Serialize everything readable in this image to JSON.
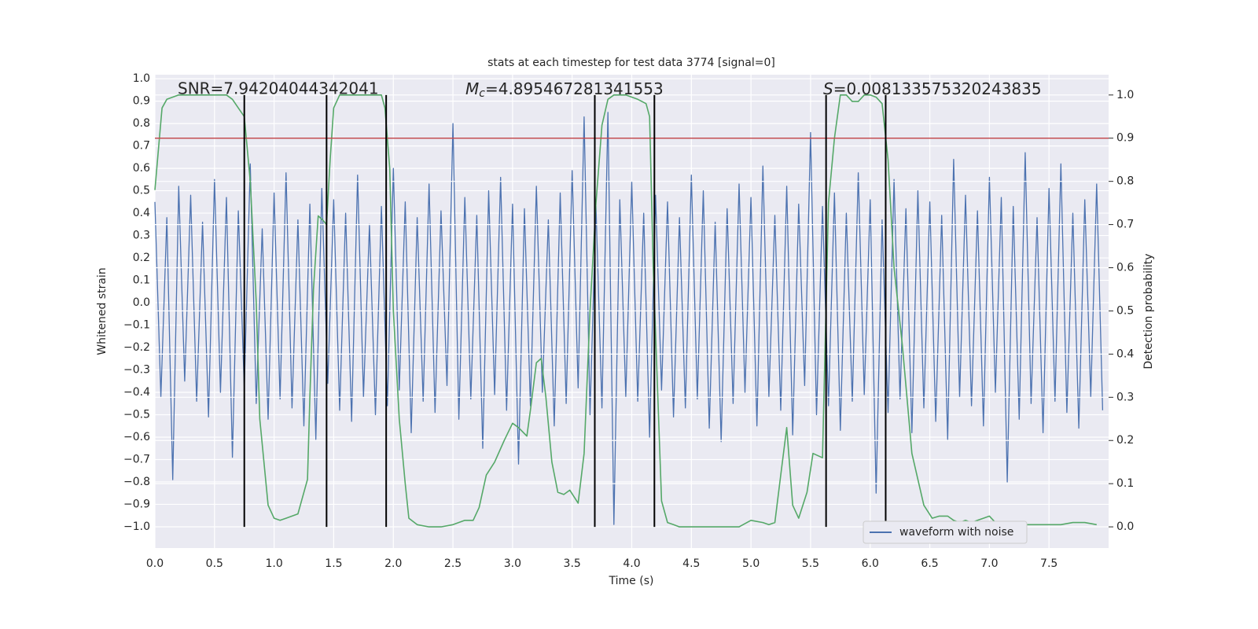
{
  "chart_data": {
    "type": "line",
    "title": "stats at each timestep for test data 3774 [signal=0]",
    "xlabel": "Time (s)",
    "ylabel": "Whitened strain",
    "y2label": "Detection probability",
    "annotations": [
      {
        "text": "SNR=7.94204044342041"
      },
      {
        "symbol": "M",
        "subscript": "c",
        "text": "=4.895467281341553"
      },
      {
        "symbol": "S",
        "text": "=0.008133575320243835"
      }
    ],
    "xlim": [
      0,
      8
    ],
    "ylim": [
      -1.095,
      1.018
    ],
    "y2lim": [
      -0.049,
      1.047
    ],
    "xticks": [
      {
        "value": 0,
        "label": "0.0"
      },
      0.5,
      {
        "value": 1,
        "label": "1.0"
      },
      1.5,
      {
        "value": 2,
        "label": "2.0"
      },
      2.5,
      {
        "value": 3,
        "label": "3.0"
      },
      3.5,
      {
        "value": 4,
        "label": "4.0"
      },
      4.5,
      {
        "value": 5,
        "label": "5.0"
      },
      5.5,
      {
        "value": 6,
        "label": "6.0"
      },
      6.5,
      {
        "value": 7,
        "label": "7.0"
      },
      7.5
    ],
    "yticks": [
      {
        "value": -1,
        "label": "−1.0"
      },
      {
        "value": -0.9,
        "label": "−0.9"
      },
      {
        "value": -0.8,
        "label": "−0.8"
      },
      {
        "value": -0.7,
        "label": "−0.7"
      },
      {
        "value": -0.6,
        "label": "−0.6"
      },
      {
        "value": -0.5,
        "label": "−0.5"
      },
      {
        "value": -0.4,
        "label": "−0.4"
      },
      {
        "value": -0.3,
        "label": "−0.3"
      },
      {
        "value": -0.2,
        "label": "−0.2"
      },
      {
        "value": -0.1,
        "label": "−0.1"
      },
      {
        "value": 0,
        "label": "0.0"
      },
      0.1,
      0.2,
      0.3,
      0.4,
      0.5,
      0.6,
      0.7,
      0.8,
      0.9,
      {
        "value": 1,
        "label": "1.0"
      }
    ],
    "y2ticks": [
      {
        "value": 0,
        "label": "0.0"
      },
      0.1,
      0.2,
      0.3,
      0.4,
      0.5,
      0.6,
      0.7,
      0.8,
      0.9,
      {
        "value": 1,
        "label": "1.0"
      }
    ],
    "grid": true,
    "legend": "lower right",
    "threshold": {
      "value": 0.9,
      "axis": "y2",
      "color": "#c44e52"
    },
    "vlines": [
      0.75,
      1.44,
      1.94,
      3.69,
      4.19,
      5.63,
      6.13
    ],
    "vline_color": "#000000",
    "series": [
      {
        "name": "waveform with noise",
        "color": "#4c72b0",
        "x": [
          0,
          0.05,
          0.1,
          0.15,
          0.2,
          0.25,
          0.3,
          0.35,
          0.4,
          0.45,
          0.5,
          0.55,
          0.6,
          0.65,
          0.7,
          0.75,
          0.8,
          0.85,
          0.9,
          0.95,
          1,
          1.05,
          1.1,
          1.15,
          1.2,
          1.25,
          1.3,
          1.35,
          1.4,
          1.45,
          1.5,
          1.55,
          1.6,
          1.65,
          1.7,
          1.75,
          1.8,
          1.85,
          1.9,
          1.95,
          2,
          2.05,
          2.1,
          2.15,
          2.2,
          2.25,
          2.3,
          2.35,
          2.4,
          2.45,
          2.5,
          2.55,
          2.6,
          2.65,
          2.7,
          2.75,
          2.8,
          2.85,
          2.9,
          2.95,
          3,
          3.05,
          3.1,
          3.15,
          3.2,
          3.25,
          3.3,
          3.35,
          3.4,
          3.45,
          3.5,
          3.55,
          3.6,
          3.65,
          3.7,
          3.75,
          3.8,
          3.85,
          3.9,
          3.95,
          4,
          4.05,
          4.1,
          4.15,
          4.2,
          4.25,
          4.3,
          4.35,
          4.4,
          4.45,
          4.5,
          4.55,
          4.6,
          4.65,
          4.7,
          4.75,
          4.8,
          4.85,
          4.9,
          4.95,
          5,
          5.05,
          5.1,
          5.15,
          5.2,
          5.25,
          5.3,
          5.35,
          5.4,
          5.45,
          5.5,
          5.55,
          5.6,
          5.65,
          5.7,
          5.75,
          5.8,
          5.85,
          5.9,
          5.95,
          6,
          6.05,
          6.1,
          6.15,
          6.2,
          6.25,
          6.3,
          6.35,
          6.4,
          6.45,
          6.5,
          6.55,
          6.6,
          6.65,
          6.7,
          6.75,
          6.8,
          6.85,
          6.9,
          6.95,
          7,
          7.05,
          7.1,
          7.15,
          7.2,
          7.25,
          7.3,
          7.35,
          7.4,
          7.45,
          7.5,
          7.55,
          7.6,
          7.65,
          7.7,
          7.75,
          7.8,
          7.85,
          7.9,
          7.95
        ],
        "values": [
          0.45,
          -0.42,
          0.38,
          -0.79,
          0.52,
          -0.35,
          0.48,
          -0.44,
          0.36,
          -0.51,
          0.55,
          -0.4,
          0.47,
          -0.69,
          0.41,
          -0.38,
          0.62,
          -0.45,
          0.33,
          -0.52,
          0.49,
          -0.43,
          0.58,
          -0.47,
          0.37,
          -0.55,
          0.44,
          -0.61,
          0.51,
          -0.36,
          0.46,
          -0.48,
          0.4,
          -0.53,
          0.57,
          -0.42,
          0.35,
          -0.5,
          0.43,
          -0.46,
          0.6,
          -0.39,
          0.45,
          -0.58,
          0.38,
          -0.44,
          0.53,
          -0.49,
          0.41,
          -0.37,
          0.8,
          -0.52,
          0.47,
          -0.43,
          0.39,
          -0.65,
          0.5,
          -0.41,
          0.56,
          -0.48,
          0.44,
          -0.72,
          0.42,
          -0.46,
          0.52,
          -0.4,
          0.37,
          -0.55,
          0.49,
          -0.45,
          0.59,
          -0.38,
          0.83,
          -0.5,
          0.43,
          -0.47,
          0.85,
          -0.99,
          0.46,
          -0.42,
          0.54,
          -0.44,
          0.4,
          -0.6,
          0.48,
          -0.39,
          0.45,
          -0.51,
          0.38,
          -0.47,
          0.57,
          -0.43,
          0.5,
          -0.56,
          0.36,
          -0.62,
          0.42,
          -0.45,
          0.53,
          -0.4,
          0.47,
          -0.55,
          0.61,
          -0.42,
          0.39,
          -0.48,
          0.52,
          -0.59,
          0.44,
          -0.37,
          0.76,
          -0.5,
          0.43,
          -0.46,
          0.49,
          -0.57,
          0.4,
          -0.44,
          0.58,
          -0.41,
          0.46,
          -0.85,
          0.37,
          -0.49,
          0.55,
          -0.43,
          0.42,
          -0.58,
          0.5,
          -0.47,
          0.45,
          -0.53,
          0.39,
          -0.61,
          0.64,
          -0.42,
          0.48,
          -0.46,
          0.41,
          -0.55,
          0.56,
          -0.4,
          0.47,
          -0.8,
          0.43,
          -0.52,
          0.67,
          -0.45,
          0.38,
          -0.58,
          0.51,
          -0.44,
          0.62,
          -0.49,
          0.4,
          -0.56,
          0.46,
          -0.42,
          0.53,
          -0.48
        ]
      },
      {
        "color": "#55a868",
        "axis": "y2",
        "x": [
          0,
          0.06,
          0.1,
          0.2,
          0.6,
          0.65,
          0.7,
          0.75,
          0.8,
          0.85,
          0.88,
          0.95,
          1,
          1.05,
          1.1,
          1.2,
          1.28,
          1.3,
          1.33,
          1.37,
          1.41,
          1.44,
          1.47,
          1.5,
          1.55,
          1.9,
          1.93,
          1.97,
          2,
          2.05,
          2.1,
          2.13,
          2.2,
          2.3,
          2.4,
          2.5,
          2.6,
          2.67,
          2.72,
          2.78,
          2.85,
          2.93,
          3,
          3.05,
          3.12,
          3.15,
          3.2,
          3.24,
          3.28,
          3.33,
          3.38,
          3.43,
          3.48,
          3.55,
          3.6,
          3.65,
          3.7,
          3.75,
          3.8,
          3.85,
          3.95,
          4.05,
          4.12,
          4.15,
          4.18,
          4.25,
          4.3,
          4.35,
          4.4,
          4.9,
          5,
          5.1,
          5.15,
          5.2,
          5.25,
          5.3,
          5.35,
          5.4,
          5.47,
          5.52,
          5.6,
          5.65,
          5.7,
          5.75,
          5.8,
          5.85,
          5.9,
          5.95,
          6,
          6.05,
          6.1,
          6.15,
          6.2,
          6.27,
          6.35,
          6.45,
          6.52,
          6.58,
          6.65,
          6.7,
          6.75,
          6.8,
          6.85,
          6.9,
          6.95,
          7,
          7.05,
          7.1,
          7.2,
          7.3,
          7.4,
          7.5,
          7.6,
          7.7,
          7.8,
          7.9
        ],
        "values": [
          0.78,
          0.97,
          0.99,
          1,
          1,
          0.99,
          0.97,
          0.95,
          0.8,
          0.52,
          0.25,
          0.05,
          0.02,
          0.015,
          0.02,
          0.03,
          0.11,
          0.3,
          0.55,
          0.72,
          0.71,
          0.7,
          0.85,
          0.97,
          1,
          1,
          0.97,
          0.83,
          0.5,
          0.25,
          0.1,
          0.02,
          0.005,
          0,
          0,
          0.005,
          0.015,
          0.015,
          0.045,
          0.12,
          0.15,
          0.2,
          0.24,
          0.23,
          0.21,
          0.27,
          0.38,
          0.39,
          0.3,
          0.15,
          0.08,
          0.075,
          0.085,
          0.055,
          0.17,
          0.5,
          0.75,
          0.93,
          0.99,
          1,
          1,
          0.99,
          0.98,
          0.95,
          0.6,
          0.06,
          0.01,
          0.005,
          0,
          0,
          0.015,
          0.01,
          0.005,
          0.01,
          0.12,
          0.23,
          0.05,
          0.02,
          0.08,
          0.17,
          0.16,
          0.75,
          0.9,
          1,
          1,
          0.985,
          0.985,
          1,
          1,
          0.995,
          0.98,
          0.85,
          0.6,
          0.42,
          0.17,
          0.05,
          0.02,
          0.025,
          0.025,
          0.015,
          0.01,
          0.015,
          0.01,
          0.015,
          0.02,
          0.025,
          0.01,
          0.005,
          0.005,
          0.005,
          0.005,
          0.005,
          0.005,
          0.01,
          0.01,
          0.005
        ]
      }
    ]
  }
}
